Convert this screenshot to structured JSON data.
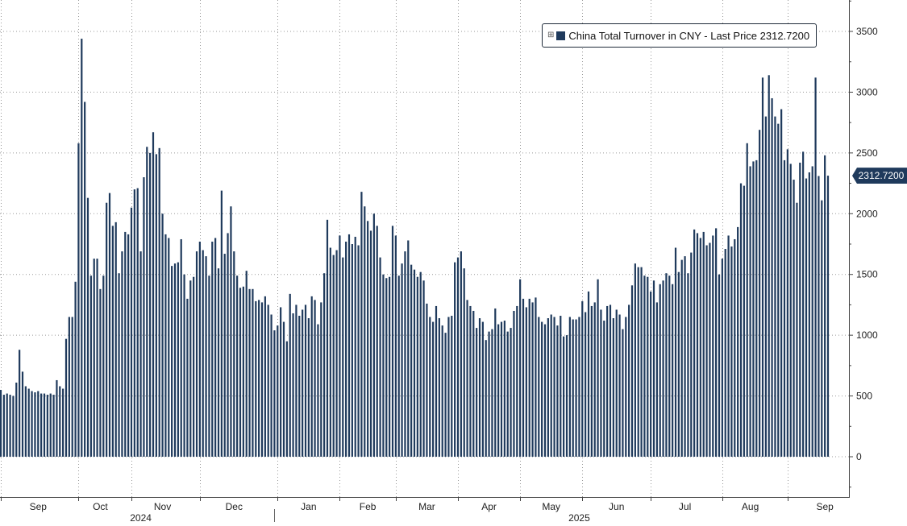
{
  "legend": {
    "icon": "plus-box-icon",
    "label": "China Total Turnover in CNY - Last Price 2312.7200",
    "swatch_color": "#1f3a5c"
  },
  "last_value_label": "2312.7200",
  "chart_data": {
    "type": "bar",
    "title": "",
    "xlabel": "",
    "ylabel": "",
    "series": [
      {
        "name": "China Total Turnover in CNY - Last Price",
        "color": "#1f3a5c",
        "values": [
          550,
          510,
          520,
          510,
          500,
          610,
          880,
          700,
          580,
          560,
          540,
          530,
          540,
          520,
          520,
          510,
          520,
          510,
          630,
          580,
          560,
          970,
          1150,
          1150,
          1440,
          2580,
          3440,
          2920,
          2130,
          1490,
          1630,
          1630,
          1380,
          1490,
          2090,
          2170,
          1900,
          1930,
          1510,
          1690,
          1850,
          1830,
          2050,
          2200,
          2210,
          1690,
          2300,
          2550,
          2500,
          2670,
          2490,
          2540,
          2000,
          1830,
          1800,
          1570,
          1590,
          1600,
          1790,
          1500,
          1300,
          1450,
          1480,
          1690,
          1770,
          1700,
          1650,
          1490,
          1770,
          1800,
          1550,
          2190,
          1670,
          1840,
          2060,
          1690,
          1490,
          1390,
          1400,
          1530,
          1380,
          1380,
          1280,
          1290,
          1270,
          1320,
          1250,
          1170,
          1040,
          1080,
          1230,
          1110,
          950,
          1340,
          1180,
          1250,
          1160,
          1210,
          1250,
          1140,
          1320,
          1290,
          1090,
          1270,
          1510,
          1950,
          1720,
          1660,
          1700,
          1820,
          1640,
          1770,
          1830,
          1750,
          1810,
          1740,
          2180,
          2060,
          1940,
          1860,
          2000,
          1900,
          1640,
          1500,
          1470,
          1480,
          1900,
          1820,
          1490,
          1590,
          1690,
          1780,
          1580,
          1540,
          1480,
          1520,
          1450,
          1260,
          1150,
          1110,
          1240,
          1140,
          1080,
          1020,
          1150,
          1160,
          1600,
          1640,
          1690,
          1550,
          1290,
          1240,
          1200,
          1060,
          1140,
          1110,
          960,
          1030,
          1050,
          1220,
          1090,
          1110,
          1120,
          1030,
          1060,
          1200,
          1240,
          1460,
          1300,
          1230,
          1300,
          1270,
          1310,
          1150,
          1110,
          1090,
          1140,
          1170,
          1150,
          1080,
          1160,
          990,
          1000,
          1150,
          1130,
          1130,
          1150,
          1280,
          1190,
          1360,
          1240,
          1270,
          1460,
          1210,
          1120,
          1240,
          1250,
          1140,
          1210,
          1170,
          1050,
          1150,
          1250,
          1410,
          1590,
          1560,
          1560,
          1490,
          1480,
          1360,
          1450,
          1270,
          1420,
          1450,
          1510,
          1490,
          1420,
          1720,
          1520,
          1620,
          1650,
          1510,
          1680,
          1870,
          1840,
          1800,
          1850,
          1740,
          1760,
          1820,
          1880,
          1500,
          1630,
          1710,
          1820,
          1730,
          1790,
          1890,
          2250,
          2230,
          2580,
          2390,
          2430,
          2440,
          2690,
          3120,
          2800,
          3140,
          2950,
          2800,
          2740,
          2860,
          2440,
          2530,
          2410,
          2280,
          2090,
          2420,
          2510,
          2290,
          2340,
          2390,
          3120,
          2310,
          2110,
          2480,
          2312.72
        ]
      }
    ],
    "ylim": [
      -350,
      3800
    ],
    "yticks": [
      0,
      500,
      1000,
      1500,
      2000,
      2500,
      3000,
      3500
    ],
    "ytick_labels": [
      "0",
      "500",
      "1000",
      "1500",
      "2000",
      "2500",
      "3000",
      "3500"
    ],
    "month_labels": [
      "Sep",
      "Oct",
      "Nov",
      "Dec",
      "Jan",
      "Feb",
      "Mar",
      "Apr",
      "May",
      "Jun",
      "Jul",
      "Aug",
      "Sep"
    ],
    "month_tick_index": [
      0,
      25,
      42,
      64,
      89,
      109,
      127,
      147,
      167,
      187,
      209,
      232,
      253
    ],
    "month_label_index": [
      12,
      32,
      52,
      75,
      99,
      118,
      137,
      157,
      177,
      198,
      220,
      241,
      265
    ],
    "year_labels": [
      "2024",
      "2025"
    ],
    "year_label_index": [
      45,
      186
    ],
    "year_divider_index": 88,
    "grid": true,
    "legend_position": "top-right",
    "y_axis_position": "right",
    "last_value": 2312.72
  }
}
